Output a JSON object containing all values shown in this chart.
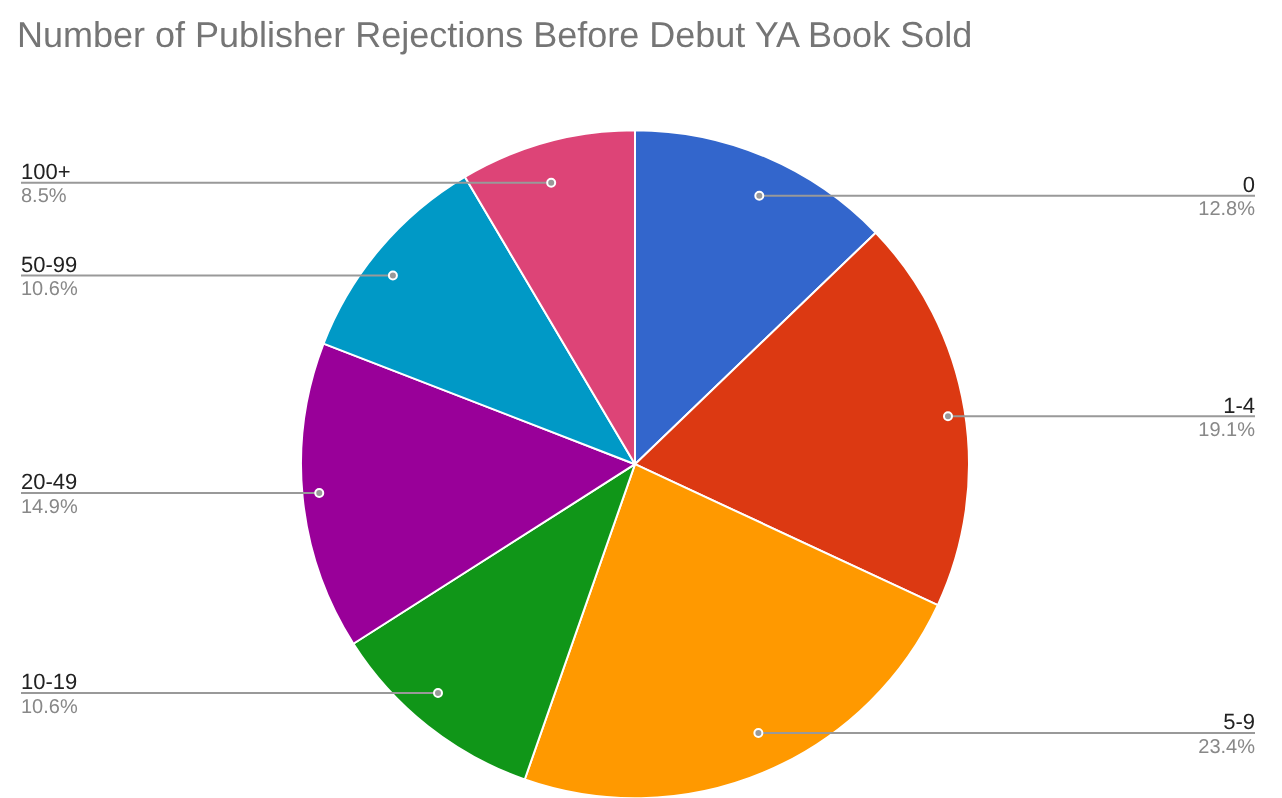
{
  "chart_data": {
    "type": "pie",
    "title": "Number of Publisher Rejections Before Debut YA Book Sold",
    "categories": [
      "0",
      "1-4",
      "5-9",
      "10-19",
      "20-49",
      "50-99",
      "100+"
    ],
    "values": [
      12.8,
      19.1,
      23.4,
      10.6,
      14.9,
      10.6,
      8.5
    ],
    "value_labels": [
      "12.8%",
      "19.1%",
      "23.4%",
      "10.6%",
      "14.9%",
      "10.6%",
      "8.5%"
    ],
    "colors": [
      "#3366cc",
      "#dc3912",
      "#ff9900",
      "#109618",
      "#990099",
      "#0099c6",
      "#dd4477"
    ]
  }
}
